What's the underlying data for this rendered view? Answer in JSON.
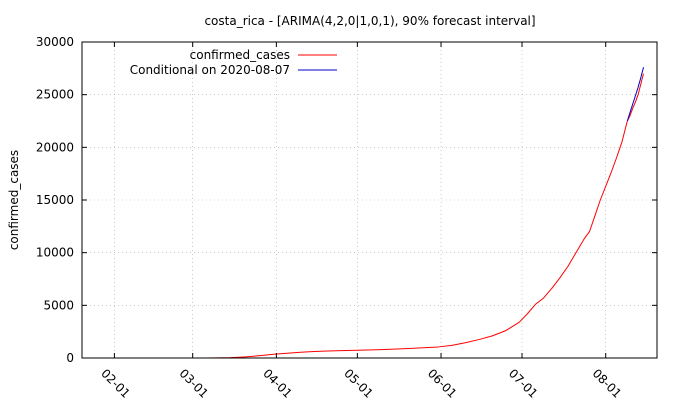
{
  "chart_data": {
    "type": "line",
    "title": "costa_rica -  [ARIMA(4,2,0|1,0,1), 90% forecast interval]",
    "ylabel": "confirmed_cases",
    "xlabel": "",
    "xlim": [
      "2020-01-20",
      "2020-08-20"
    ],
    "ylim": [
      0,
      30000
    ],
    "yticks": [
      0,
      5000,
      10000,
      15000,
      20000,
      25000,
      30000
    ],
    "xticks": [
      {
        "date": "2020-02-01",
        "label": "02-01"
      },
      {
        "date": "2020-03-01",
        "label": "03-01"
      },
      {
        "date": "2020-04-01",
        "label": "04-01"
      },
      {
        "date": "2020-05-01",
        "label": "05-01"
      },
      {
        "date": "2020-06-01",
        "label": "06-01"
      },
      {
        "date": "2020-07-01",
        "label": "07-01"
      },
      {
        "date": "2020-08-01",
        "label": "08-01"
      }
    ],
    "grid": true,
    "legend_position": "top-left",
    "series": [
      {
        "name": "confirmed_cases",
        "color": "#ff0000",
        "points": [
          [
            "2020-03-06",
            1
          ],
          [
            "2020-03-10",
            10
          ],
          [
            "2020-03-15",
            30
          ],
          [
            "2020-03-20",
            100
          ],
          [
            "2020-03-25",
            200
          ],
          [
            "2020-03-31",
            350
          ],
          [
            "2020-04-05",
            450
          ],
          [
            "2020-04-10",
            550
          ],
          [
            "2020-04-15",
            620
          ],
          [
            "2020-04-20",
            660
          ],
          [
            "2020-04-25",
            700
          ],
          [
            "2020-05-01",
            740
          ],
          [
            "2020-05-10",
            790
          ],
          [
            "2020-05-20",
            900
          ],
          [
            "2020-05-31",
            1050
          ],
          [
            "2020-06-05",
            1200
          ],
          [
            "2020-06-10",
            1450
          ],
          [
            "2020-06-15",
            1750
          ],
          [
            "2020-06-20",
            2100
          ],
          [
            "2020-06-25",
            2600
          ],
          [
            "2020-06-30",
            3400
          ],
          [
            "2020-07-03",
            4200
          ],
          [
            "2020-07-06",
            5100
          ],
          [
            "2020-07-09",
            5700
          ],
          [
            "2020-07-12",
            6600
          ],
          [
            "2020-07-15",
            7600
          ],
          [
            "2020-07-18",
            8700
          ],
          [
            "2020-07-21",
            10000
          ],
          [
            "2020-07-24",
            11300
          ],
          [
            "2020-07-26",
            12000
          ],
          [
            "2020-07-28",
            13500
          ],
          [
            "2020-07-30",
            15000
          ],
          [
            "2020-08-01",
            16300
          ],
          [
            "2020-08-03",
            17600
          ],
          [
            "2020-08-05",
            19000
          ],
          [
            "2020-08-07",
            20500
          ],
          [
            "2020-08-08",
            21500
          ],
          [
            "2020-08-09",
            22500
          ],
          [
            "2020-08-10",
            23000
          ],
          [
            "2020-08-11",
            23700
          ],
          [
            "2020-08-12",
            24300
          ],
          [
            "2020-08-13",
            25000
          ],
          [
            "2020-08-14",
            26000
          ],
          [
            "2020-08-15",
            27000
          ]
        ]
      },
      {
        "name": "Conditional on 2020-08-07",
        "color": "#0000cc",
        "points": [
          [
            "2020-08-09",
            22500
          ],
          [
            "2020-08-10",
            23300
          ],
          [
            "2020-08-11",
            24100
          ],
          [
            "2020-08-12",
            24900
          ],
          [
            "2020-08-13",
            25700
          ],
          [
            "2020-08-14",
            26600
          ],
          [
            "2020-08-15",
            27600
          ]
        ]
      }
    ]
  }
}
